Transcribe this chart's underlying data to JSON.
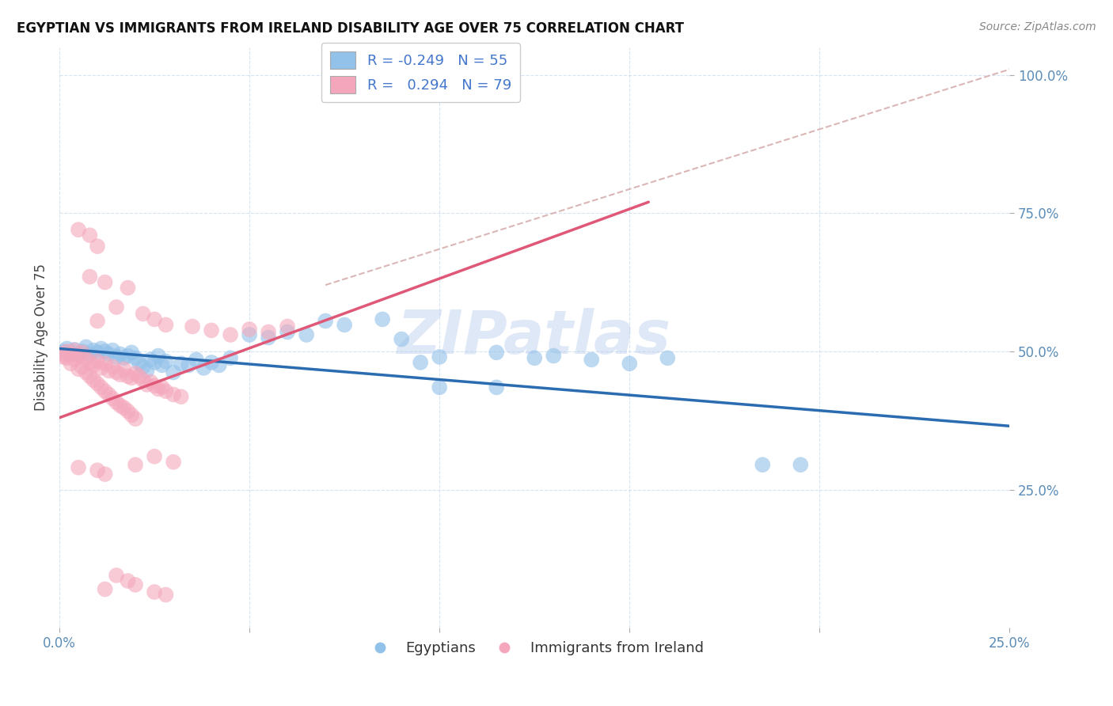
{
  "title": "EGYPTIAN VS IMMIGRANTS FROM IRELAND DISABILITY AGE OVER 75 CORRELATION CHART",
  "source": "Source: ZipAtlas.com",
  "ylabel": "Disability Age Over 75",
  "xlim": [
    0.0,
    0.25
  ],
  "ylim": [
    0.0,
    1.05
  ],
  "legend_r_blue": "-0.249",
  "legend_n_blue": "55",
  "legend_r_pink": "0.294",
  "legend_n_pink": "79",
  "color_blue": "#92C1E9",
  "color_pink": "#F4A7BC",
  "line_color_blue": "#2B6CB0",
  "line_color_pink": "#E05878",
  "diag_color": "#D4AAAA",
  "watermark": "ZIPatlas",
  "blue_line": [
    0.0,
    0.505,
    0.25,
    0.365
  ],
  "pink_line": [
    0.0,
    0.38,
    0.155,
    0.77
  ],
  "diag_line": [
    0.07,
    0.62,
    0.25,
    1.01
  ],
  "blue_points": [
    [
      0.001,
      0.5
    ],
    [
      0.002,
      0.505
    ],
    [
      0.003,
      0.498
    ],
    [
      0.004,
      0.503
    ],
    [
      0.005,
      0.495
    ],
    [
      0.006,
      0.5
    ],
    [
      0.007,
      0.508
    ],
    [
      0.008,
      0.495
    ],
    [
      0.009,
      0.502
    ],
    [
      0.01,
      0.498
    ],
    [
      0.011,
      0.505
    ],
    [
      0.012,
      0.5
    ],
    [
      0.013,
      0.495
    ],
    [
      0.014,
      0.502
    ],
    [
      0.015,
      0.49
    ],
    [
      0.016,
      0.495
    ],
    [
      0.017,
      0.488
    ],
    [
      0.018,
      0.492
    ],
    [
      0.019,
      0.498
    ],
    [
      0.02,
      0.488
    ],
    [
      0.021,
      0.478
    ],
    [
      0.022,
      0.472
    ],
    [
      0.023,
      0.465
    ],
    [
      0.024,
      0.485
    ],
    [
      0.025,
      0.48
    ],
    [
      0.026,
      0.492
    ],
    [
      0.027,
      0.475
    ],
    [
      0.028,
      0.482
    ],
    [
      0.03,
      0.462
    ],
    [
      0.032,
      0.478
    ],
    [
      0.034,
      0.475
    ],
    [
      0.036,
      0.485
    ],
    [
      0.038,
      0.47
    ],
    [
      0.04,
      0.48
    ],
    [
      0.042,
      0.475
    ],
    [
      0.045,
      0.488
    ],
    [
      0.05,
      0.53
    ],
    [
      0.055,
      0.525
    ],
    [
      0.06,
      0.535
    ],
    [
      0.065,
      0.53
    ],
    [
      0.07,
      0.555
    ],
    [
      0.075,
      0.548
    ],
    [
      0.085,
      0.558
    ],
    [
      0.09,
      0.522
    ],
    [
      0.095,
      0.48
    ],
    [
      0.1,
      0.49
    ],
    [
      0.115,
      0.498
    ],
    [
      0.125,
      0.488
    ],
    [
      0.13,
      0.492
    ],
    [
      0.14,
      0.485
    ],
    [
      0.15,
      0.478
    ],
    [
      0.16,
      0.488
    ],
    [
      0.185,
      0.295
    ],
    [
      0.195,
      0.295
    ],
    [
      0.1,
      0.435
    ],
    [
      0.115,
      0.435
    ]
  ],
  "pink_points": [
    [
      0.001,
      0.49
    ],
    [
      0.001,
      0.495
    ],
    [
      0.002,
      0.5
    ],
    [
      0.002,
      0.488
    ],
    [
      0.003,
      0.495
    ],
    [
      0.003,
      0.478
    ],
    [
      0.004,
      0.502
    ],
    [
      0.004,
      0.485
    ],
    [
      0.005,
      0.492
    ],
    [
      0.005,
      0.468
    ],
    [
      0.006,
      0.498
    ],
    [
      0.006,
      0.472
    ],
    [
      0.007,
      0.488
    ],
    [
      0.007,
      0.462
    ],
    [
      0.008,
      0.48
    ],
    [
      0.008,
      0.455
    ],
    [
      0.009,
      0.475
    ],
    [
      0.009,
      0.448
    ],
    [
      0.01,
      0.482
    ],
    [
      0.01,
      0.442
    ],
    [
      0.011,
      0.47
    ],
    [
      0.011,
      0.435
    ],
    [
      0.012,
      0.478
    ],
    [
      0.012,
      0.428
    ],
    [
      0.013,
      0.465
    ],
    [
      0.013,
      0.422
    ],
    [
      0.014,
      0.472
    ],
    [
      0.014,
      0.415
    ],
    [
      0.015,
      0.462
    ],
    [
      0.015,
      0.408
    ],
    [
      0.016,
      0.458
    ],
    [
      0.016,
      0.402
    ],
    [
      0.017,
      0.468
    ],
    [
      0.017,
      0.398
    ],
    [
      0.018,
      0.455
    ],
    [
      0.018,
      0.392
    ],
    [
      0.019,
      0.452
    ],
    [
      0.019,
      0.385
    ],
    [
      0.02,
      0.46
    ],
    [
      0.02,
      0.378
    ],
    [
      0.021,
      0.455
    ],
    [
      0.022,
      0.448
    ],
    [
      0.023,
      0.44
    ],
    [
      0.024,
      0.445
    ],
    [
      0.025,
      0.438
    ],
    [
      0.026,
      0.432
    ],
    [
      0.027,
      0.435
    ],
    [
      0.028,
      0.428
    ],
    [
      0.03,
      0.422
    ],
    [
      0.032,
      0.418
    ],
    [
      0.01,
      0.555
    ],
    [
      0.015,
      0.58
    ],
    [
      0.018,
      0.615
    ],
    [
      0.012,
      0.625
    ],
    [
      0.008,
      0.635
    ],
    [
      0.005,
      0.72
    ],
    [
      0.01,
      0.69
    ],
    [
      0.008,
      0.71
    ],
    [
      0.015,
      0.095
    ],
    [
      0.018,
      0.085
    ],
    [
      0.02,
      0.078
    ],
    [
      0.012,
      0.07
    ],
    [
      0.025,
      0.065
    ],
    [
      0.028,
      0.06
    ],
    [
      0.005,
      0.29
    ],
    [
      0.01,
      0.285
    ],
    [
      0.012,
      0.278
    ],
    [
      0.02,
      0.295
    ],
    [
      0.025,
      0.31
    ],
    [
      0.03,
      0.3
    ],
    [
      0.022,
      0.568
    ],
    [
      0.025,
      0.558
    ],
    [
      0.028,
      0.548
    ],
    [
      0.035,
      0.545
    ],
    [
      0.04,
      0.538
    ],
    [
      0.045,
      0.53
    ],
    [
      0.05,
      0.54
    ],
    [
      0.055,
      0.535
    ],
    [
      0.06,
      0.545
    ]
  ]
}
